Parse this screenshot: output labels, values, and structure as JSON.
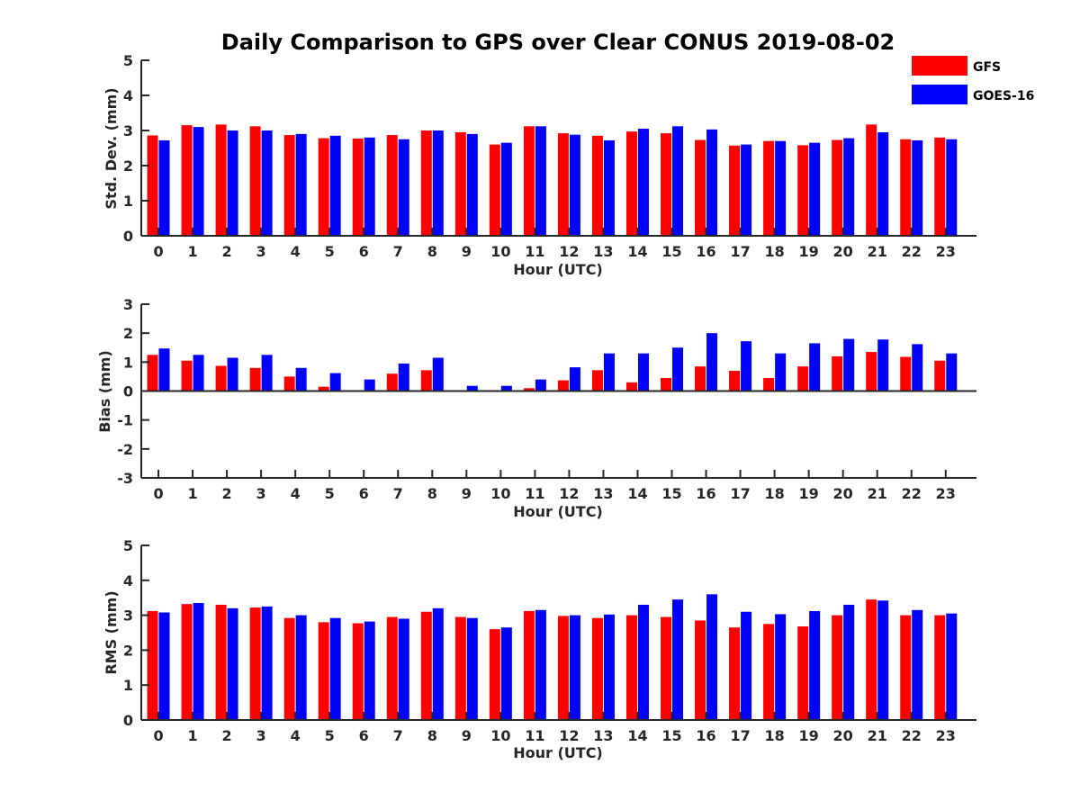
{
  "chart_data": {
    "type": "bar",
    "title": "Daily Comparison to GPS over Clear CONUS 2019-08-02",
    "legend": {
      "placement": "top-right",
      "entries": [
        {
          "name": "GFS",
          "color": "#ff0000"
        },
        {
          "name": "GOES-16",
          "color": "#0000ff"
        }
      ]
    },
    "categories": [
      "0",
      "1",
      "2",
      "3",
      "4",
      "5",
      "6",
      "7",
      "8",
      "9",
      "10",
      "11",
      "12",
      "13",
      "14",
      "15",
      "16",
      "17",
      "18",
      "19",
      "20",
      "21",
      "22",
      "23"
    ],
    "panels": [
      {
        "id": "stddev",
        "xlabel": "Hour (UTC)",
        "ylabel": "Std. Dev. (mm)",
        "ylim": [
          0,
          5
        ],
        "yticks": [
          0,
          1,
          2,
          3,
          4,
          5
        ],
        "series": [
          {
            "name": "GFS",
            "color": "#ff0000",
            "values": [
              2.86,
              3.15,
              3.17,
              3.12,
              2.87,
              2.78,
              2.77,
              2.87,
              3.0,
              2.95,
              2.6,
              3.12,
              2.92,
              2.85,
              2.97,
              2.92,
              2.73,
              2.57,
              2.7,
              2.58,
              2.73,
              3.17,
              2.75,
              2.8
            ]
          },
          {
            "name": "GOES-16",
            "color": "#0000ff",
            "values": [
              2.72,
              3.1,
              3.0,
              3.0,
              2.9,
              2.85,
              2.8,
              2.75,
              3.0,
              2.9,
              2.65,
              3.12,
              2.88,
              2.72,
              3.05,
              3.12,
              3.03,
              2.6,
              2.7,
              2.65,
              2.78,
              2.95,
              2.72,
              2.75
            ]
          }
        ]
      },
      {
        "id": "bias",
        "xlabel": "Hour (UTC)",
        "ylabel": "Bias (mm)",
        "ylim": [
          -3,
          3
        ],
        "yticks": [
          -3,
          -2,
          -1,
          0,
          1,
          2,
          3
        ],
        "series": [
          {
            "name": "GFS",
            "color": "#ff0000",
            "values": [
              1.25,
              1.05,
              0.87,
              0.8,
              0.5,
              0.15,
              0.0,
              0.6,
              0.72,
              0.0,
              -0.03,
              0.1,
              0.37,
              0.72,
              0.3,
              0.45,
              0.85,
              0.7,
              0.45,
              0.85,
              1.2,
              1.35,
              1.18,
              1.05
            ]
          },
          {
            "name": "GOES-16",
            "color": "#0000ff",
            "values": [
              1.47,
              1.25,
              1.15,
              1.25,
              0.8,
              0.62,
              0.4,
              0.95,
              1.15,
              0.18,
              0.18,
              0.4,
              0.82,
              1.3,
              1.3,
              1.5,
              2.0,
              1.72,
              1.3,
              1.65,
              1.8,
              1.78,
              1.62,
              1.3
            ]
          }
        ]
      },
      {
        "id": "rms",
        "xlabel": "Hour (UTC)",
        "ylabel": "RMS (mm)",
        "ylim": [
          0,
          5
        ],
        "yticks": [
          0,
          1,
          2,
          3,
          4,
          5
        ],
        "series": [
          {
            "name": "GFS",
            "color": "#ff0000",
            "values": [
              3.12,
              3.32,
              3.3,
              3.22,
              2.92,
              2.8,
              2.77,
              2.95,
              3.1,
              2.95,
              2.6,
              3.12,
              2.98,
              2.92,
              3.0,
              2.95,
              2.85,
              2.65,
              2.75,
              2.68,
              3.0,
              3.45,
              3.0,
              3.0
            ]
          },
          {
            "name": "GOES-16",
            "color": "#0000ff",
            "values": [
              3.08,
              3.35,
              3.2,
              3.25,
              3.0,
              2.92,
              2.82,
              2.9,
              3.2,
              2.92,
              2.65,
              3.15,
              3.0,
              3.02,
              3.3,
              3.45,
              3.6,
              3.1,
              3.03,
              3.12,
              3.3,
              3.42,
              3.15,
              3.05
            ]
          }
        ]
      }
    ]
  }
}
